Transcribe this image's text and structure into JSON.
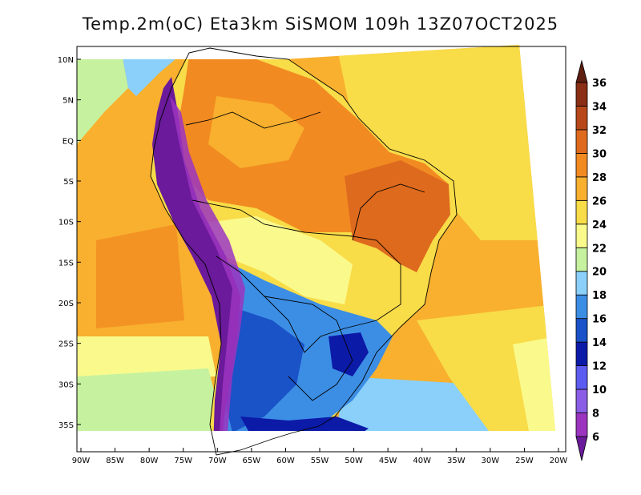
{
  "title": "Temp.2m(oC) Eta3km SiSMOM 109h 13Z07OCT2025",
  "map": {
    "lon_range": [
      -91,
      -19
    ],
    "lat_range": [
      -38,
      11
    ],
    "x_ticks": [
      "90W",
      "85W",
      "80W",
      "75W",
      "70W",
      "65W",
      "60W",
      "55W",
      "50W",
      "45W",
      "40W",
      "35W",
      "30W",
      "25W",
      "20W"
    ],
    "x_tick_values": [
      -90,
      -85,
      -80,
      -75,
      -70,
      -65,
      -60,
      -55,
      -50,
      -45,
      -40,
      -35,
      -30,
      -25,
      -20
    ],
    "y_ticks": [
      "10N",
      "5N",
      "EQ",
      "5S",
      "10S",
      "15S",
      "20S",
      "25S",
      "30S",
      "35S"
    ],
    "y_tick_values": [
      10,
      5,
      0,
      -5,
      -10,
      -15,
      -20,
      -25,
      -30,
      -35
    ],
    "variable": "2 m air temperature",
    "units": "oC"
  },
  "colorbar": {
    "labels": [
      "6",
      "8",
      "10",
      "12",
      "14",
      "16",
      "18",
      "20",
      "22",
      "24",
      "26",
      "28",
      "30",
      "32",
      "34",
      "36"
    ],
    "levels": [
      6,
      8,
      10,
      12,
      14,
      16,
      18,
      20,
      22,
      24,
      26,
      28,
      30,
      32,
      34,
      36
    ],
    "colors": [
      "#6a1a9a",
      "#9b35c0",
      "#8a5ee6",
      "#5c5cf0",
      "#0c1aa8",
      "#1a52c8",
      "#3c8ee4",
      "#8ad0fa",
      "#c6f2a0",
      "#fafa8c",
      "#f8dc48",
      "#f8b02e",
      "#f28a22",
      "#de6a1e",
      "#b8481a",
      "#8a2e16",
      "#5e1e10"
    ],
    "arrows": true
  }
}
